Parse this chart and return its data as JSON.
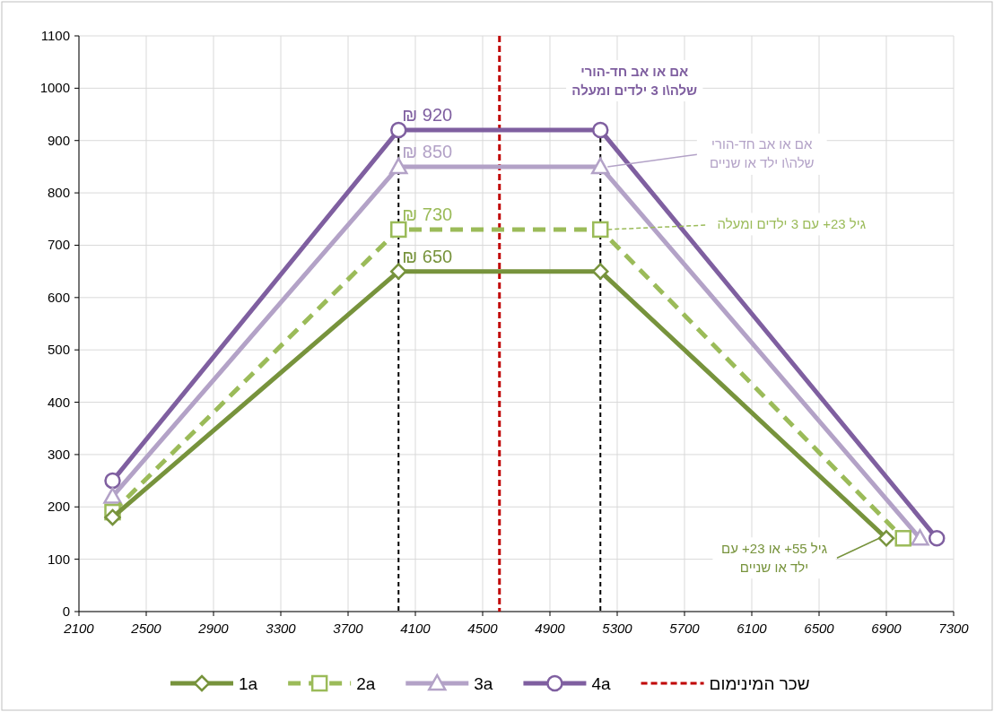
{
  "chart_data": {
    "type": "line",
    "series": [
      {
        "name": "1a",
        "color": "#77933c",
        "marker": "diamond",
        "line_style": "solid",
        "x": [
          2300,
          4000,
          5200,
          6900
        ],
        "values": [
          180,
          650,
          650,
          140
        ]
      },
      {
        "name": "2a",
        "color": "#9bbb59",
        "marker": "square",
        "line_style": "dashed",
        "x": [
          2300,
          4000,
          5200,
          7000
        ],
        "values": [
          190,
          730,
          730,
          140
        ]
      },
      {
        "name": "3a",
        "color": "#b3a2c7",
        "marker": "triangle",
        "line_style": "solid",
        "x": [
          2300,
          4000,
          5200,
          7100
        ],
        "values": [
          220,
          850,
          850,
          140
        ]
      },
      {
        "name": "4a",
        "color": "#7f5fa0",
        "marker": "circle",
        "line_style": "solid",
        "x": [
          2300,
          4000,
          5200,
          7200
        ],
        "values": [
          250,
          920,
          920,
          140
        ]
      }
    ],
    "xlim": [
      2100,
      7300
    ],
    "xticks": [
      2100,
      2500,
      2900,
      3300,
      3700,
      4100,
      4500,
      4900,
      5300,
      5700,
      6100,
      6500,
      6900,
      7300
    ],
    "ylim": [
      0,
      1100
    ],
    "yticks": [
      0,
      100,
      200,
      300,
      400,
      500,
      600,
      700,
      800,
      900,
      1000,
      1100
    ],
    "grid": true,
    "legend": "bottom",
    "ref_lines": [
      {
        "axis": "x",
        "value": 4600,
        "label": "שכר המינימום",
        "color": "#c00000",
        "line_style": "dashed"
      },
      {
        "axis": "x",
        "value": 4000,
        "color": "#000000",
        "line_style": "dashed"
      },
      {
        "axis": "x",
        "value": 5200,
        "color": "#000000",
        "line_style": "dashed"
      }
    ],
    "annotations": [
      {
        "text": "₪ 920",
        "x": 4000,
        "y": 920
      },
      {
        "text": "₪ 850",
        "x": 4000,
        "y": 850
      },
      {
        "text": "₪ 730",
        "x": 4000,
        "y": 730
      },
      {
        "text": "₪ 650",
        "x": 4000,
        "y": 650
      },
      {
        "text": "אם או אב חד-הורי\nשלה\\ו 3 ילדים ומעלה",
        "x": 5200,
        "y": 920
      },
      {
        "text": "אם או אב חד-הורי\nשלה\\ו ילד או שניים",
        "x": 5200,
        "y": 850
      },
      {
        "text": "גיל 23+ עם 3 ילדים ומעלה",
        "x": 5200,
        "y": 730
      },
      {
        "text": "גיל 55+ או 23+ עם\nילד או שניים",
        "x": 6900,
        "y": 140
      }
    ]
  }
}
